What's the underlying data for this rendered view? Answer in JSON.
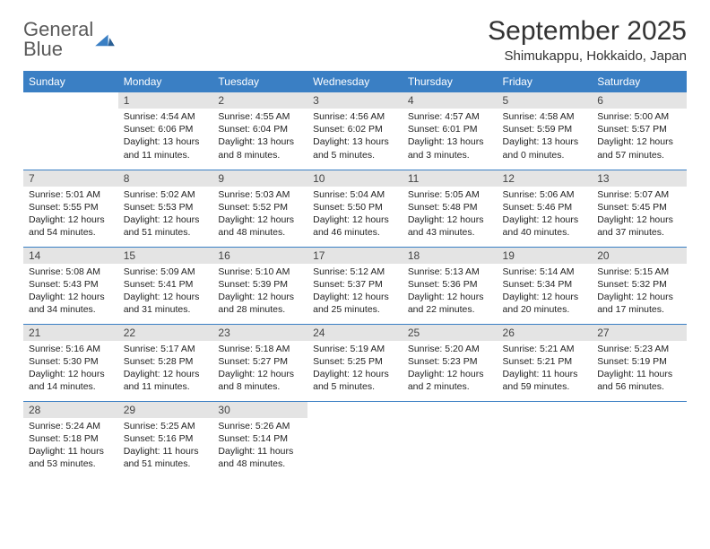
{
  "brand": {
    "name1": "General",
    "name2": "Blue"
  },
  "title": "September 2025",
  "location": "Shimukappu, Hokkaido, Japan",
  "colors": {
    "header_bg": "#3a7fc4",
    "daynum_bg": "#e4e4e4",
    "text": "#222222",
    "rule": "#3a7fc4",
    "page_bg": "#ffffff"
  },
  "typography": {
    "title_fontsize": 30,
    "location_fontsize": 15,
    "header_fontsize": 12,
    "cell_fontsize": 10.5
  },
  "weekdays": [
    "Sunday",
    "Monday",
    "Tuesday",
    "Wednesday",
    "Thursday",
    "Friday",
    "Saturday"
  ],
  "weeks": [
    [
      {
        "n": "",
        "empty": true
      },
      {
        "n": "1",
        "sunrise": "4:54 AM",
        "sunset": "6:06 PM",
        "daylight": "13 hours and 11 minutes."
      },
      {
        "n": "2",
        "sunrise": "4:55 AM",
        "sunset": "6:04 PM",
        "daylight": "13 hours and 8 minutes."
      },
      {
        "n": "3",
        "sunrise": "4:56 AM",
        "sunset": "6:02 PM",
        "daylight": "13 hours and 5 minutes."
      },
      {
        "n": "4",
        "sunrise": "4:57 AM",
        "sunset": "6:01 PM",
        "daylight": "13 hours and 3 minutes."
      },
      {
        "n": "5",
        "sunrise": "4:58 AM",
        "sunset": "5:59 PM",
        "daylight": "13 hours and 0 minutes."
      },
      {
        "n": "6",
        "sunrise": "5:00 AM",
        "sunset": "5:57 PM",
        "daylight": "12 hours and 57 minutes."
      }
    ],
    [
      {
        "n": "7",
        "sunrise": "5:01 AM",
        "sunset": "5:55 PM",
        "daylight": "12 hours and 54 minutes."
      },
      {
        "n": "8",
        "sunrise": "5:02 AM",
        "sunset": "5:53 PM",
        "daylight": "12 hours and 51 minutes."
      },
      {
        "n": "9",
        "sunrise": "5:03 AM",
        "sunset": "5:52 PM",
        "daylight": "12 hours and 48 minutes."
      },
      {
        "n": "10",
        "sunrise": "5:04 AM",
        "sunset": "5:50 PM",
        "daylight": "12 hours and 46 minutes."
      },
      {
        "n": "11",
        "sunrise": "5:05 AM",
        "sunset": "5:48 PM",
        "daylight": "12 hours and 43 minutes."
      },
      {
        "n": "12",
        "sunrise": "5:06 AM",
        "sunset": "5:46 PM",
        "daylight": "12 hours and 40 minutes."
      },
      {
        "n": "13",
        "sunrise": "5:07 AM",
        "sunset": "5:45 PM",
        "daylight": "12 hours and 37 minutes."
      }
    ],
    [
      {
        "n": "14",
        "sunrise": "5:08 AM",
        "sunset": "5:43 PM",
        "daylight": "12 hours and 34 minutes."
      },
      {
        "n": "15",
        "sunrise": "5:09 AM",
        "sunset": "5:41 PM",
        "daylight": "12 hours and 31 minutes."
      },
      {
        "n": "16",
        "sunrise": "5:10 AM",
        "sunset": "5:39 PM",
        "daylight": "12 hours and 28 minutes."
      },
      {
        "n": "17",
        "sunrise": "5:12 AM",
        "sunset": "5:37 PM",
        "daylight": "12 hours and 25 minutes."
      },
      {
        "n": "18",
        "sunrise": "5:13 AM",
        "sunset": "5:36 PM",
        "daylight": "12 hours and 22 minutes."
      },
      {
        "n": "19",
        "sunrise": "5:14 AM",
        "sunset": "5:34 PM",
        "daylight": "12 hours and 20 minutes."
      },
      {
        "n": "20",
        "sunrise": "5:15 AM",
        "sunset": "5:32 PM",
        "daylight": "12 hours and 17 minutes."
      }
    ],
    [
      {
        "n": "21",
        "sunrise": "5:16 AM",
        "sunset": "5:30 PM",
        "daylight": "12 hours and 14 minutes."
      },
      {
        "n": "22",
        "sunrise": "5:17 AM",
        "sunset": "5:28 PM",
        "daylight": "12 hours and 11 minutes."
      },
      {
        "n": "23",
        "sunrise": "5:18 AM",
        "sunset": "5:27 PM",
        "daylight": "12 hours and 8 minutes."
      },
      {
        "n": "24",
        "sunrise": "5:19 AM",
        "sunset": "5:25 PM",
        "daylight": "12 hours and 5 minutes."
      },
      {
        "n": "25",
        "sunrise": "5:20 AM",
        "sunset": "5:23 PM",
        "daylight": "12 hours and 2 minutes."
      },
      {
        "n": "26",
        "sunrise": "5:21 AM",
        "sunset": "5:21 PM",
        "daylight": "11 hours and 59 minutes."
      },
      {
        "n": "27",
        "sunrise": "5:23 AM",
        "sunset": "5:19 PM",
        "daylight": "11 hours and 56 minutes."
      }
    ],
    [
      {
        "n": "28",
        "sunrise": "5:24 AM",
        "sunset": "5:18 PM",
        "daylight": "11 hours and 53 minutes."
      },
      {
        "n": "29",
        "sunrise": "5:25 AM",
        "sunset": "5:16 PM",
        "daylight": "11 hours and 51 minutes."
      },
      {
        "n": "30",
        "sunrise": "5:26 AM",
        "sunset": "5:14 PM",
        "daylight": "11 hours and 48 minutes."
      },
      {
        "n": "",
        "empty": true
      },
      {
        "n": "",
        "empty": true
      },
      {
        "n": "",
        "empty": true
      },
      {
        "n": "",
        "empty": true
      }
    ]
  ],
  "labels": {
    "sunrise": "Sunrise:",
    "sunset": "Sunset:",
    "daylight": "Daylight:"
  }
}
